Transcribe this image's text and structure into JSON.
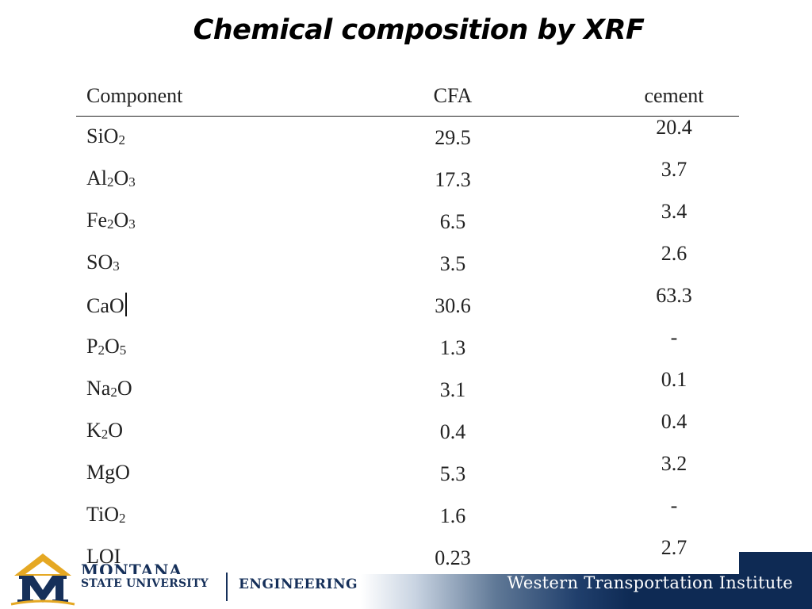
{
  "slide": {
    "title": "Chemical composition by XRF"
  },
  "table": {
    "headers": [
      "Component",
      "CFA",
      "cement"
    ],
    "rows": [
      {
        "component_base": "SiO",
        "component_tail": [
          [
            "2",
            "sub"
          ]
        ],
        "cfa": "29.5",
        "cement": "20.4"
      },
      {
        "component_base": "Al",
        "component_tail": [
          [
            "2",
            "sub"
          ],
          [
            "O",
            "txt"
          ],
          [
            "3",
            "sub"
          ]
        ],
        "cfa": "17.3",
        "cement": "3.7"
      },
      {
        "component_base": "Fe",
        "component_tail": [
          [
            "2",
            "sub"
          ],
          [
            "O",
            "txt"
          ],
          [
            "3",
            "sub"
          ]
        ],
        "cfa": "6.5",
        "cement": "3.4"
      },
      {
        "component_base": "SO",
        "component_tail": [
          [
            "3",
            "sub"
          ]
        ],
        "cfa": "3.5",
        "cement": "2.6"
      },
      {
        "component_base": "CaO",
        "component_tail": [],
        "cfa": "30.6",
        "cement": "63.3",
        "cursor": true
      },
      {
        "component_base": "P",
        "component_tail": [
          [
            "2",
            "sub"
          ],
          [
            "O",
            "txt"
          ],
          [
            "5",
            "sub"
          ]
        ],
        "cfa": "1.3",
        "cement": "-"
      },
      {
        "component_base": "Na",
        "component_tail": [
          [
            "2",
            "sub"
          ],
          [
            "O",
            "txt"
          ]
        ],
        "cfa": "3.1",
        "cement": "0.1"
      },
      {
        "component_base": "K",
        "component_tail": [
          [
            "2",
            "sub"
          ],
          [
            "O",
            "txt"
          ]
        ],
        "cfa": "0.4",
        "cement": "0.4"
      },
      {
        "component_base": "MgO",
        "component_tail": [],
        "cfa": "5.3",
        "cement": "3.2"
      },
      {
        "component_base": "TiO",
        "component_tail": [
          [
            "2",
            "sub"
          ]
        ],
        "cfa": "1.6",
        "cement": "-"
      },
      {
        "component_base": "LOI",
        "component_tail": [],
        "cfa": "0.23",
        "cement": "2.7"
      }
    ]
  },
  "footer": {
    "university_top": "MONTANA",
    "university_bottom": "STATE UNIVERSITY",
    "college": "ENGINEERING",
    "institute": "Western Transportation Institute",
    "colors": {
      "navy": "#0e2a54",
      "gold": "#e5a823",
      "logo_blue": "#16305a"
    }
  }
}
